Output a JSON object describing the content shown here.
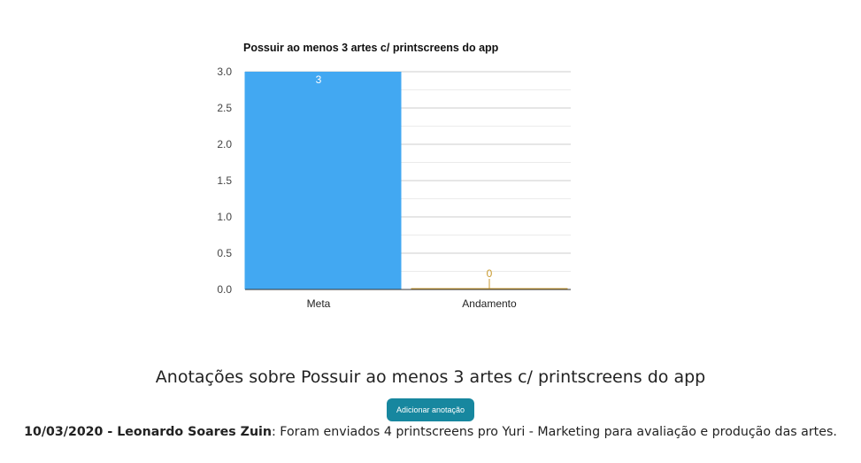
{
  "chart_data": {
    "type": "bar",
    "title": "Possuir ao menos 3 artes c/ printscreens do app",
    "categories": [
      "Meta",
      "Andamento"
    ],
    "values": [
      3,
      0
    ],
    "data_labels": [
      "3",
      "0"
    ],
    "colors": [
      "#42a8f2",
      "#c99a2e"
    ],
    "ylim": [
      0,
      3
    ],
    "yticks": [
      "0.0",
      "0.5",
      "1.0",
      "1.5",
      "2.0",
      "2.5",
      "3.0"
    ],
    "ytick_values": [
      0,
      0.5,
      1,
      1.5,
      2,
      2.5,
      3
    ],
    "minor_gridlines": true,
    "xlabel": "",
    "ylabel": ""
  },
  "notes": {
    "title": "Anotações sobre Possuir ao menos 3 artes c/ printscreens do app",
    "add_button_label": "Adicionar anotação",
    "entries": [
      {
        "header": "10/03/2020 - Leonardo Soares Zuin",
        "text": ": Foram enviados 4 printscreens pro Yuri - Marketing para avaliação e produção das artes."
      }
    ]
  }
}
